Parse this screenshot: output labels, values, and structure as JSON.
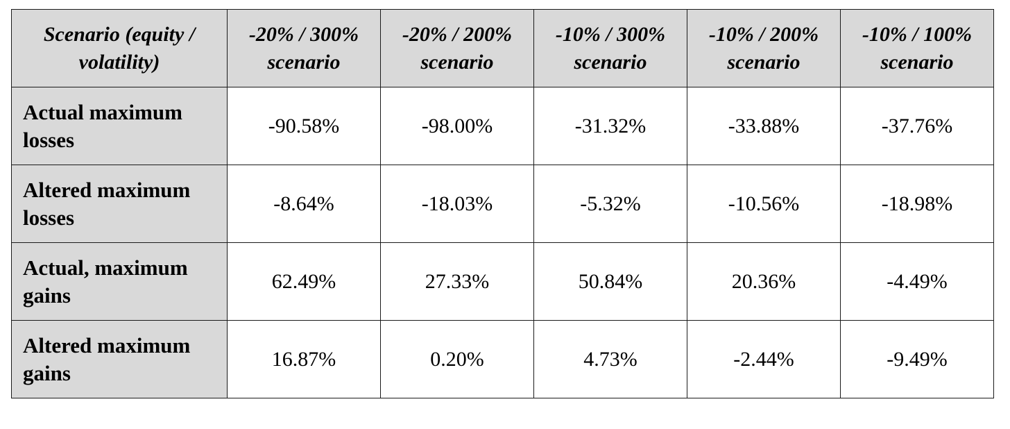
{
  "table": {
    "headers": [
      "Scenario (equity / volatility)",
      "-20% / 300% scenario",
      "-20% / 200% scenario",
      "-10% / 300% scenario",
      "-10% / 200% scenario",
      "-10% / 100% scenario"
    ],
    "rows": [
      {
        "label": "Actual maximum losses",
        "values": [
          "-90.58%",
          "-98.00%",
          "-31.32%",
          "-33.88%",
          "-37.76%"
        ]
      },
      {
        "label": "Altered maximum losses",
        "values": [
          "-8.64%",
          "-18.03%",
          "-5.32%",
          "-10.56%",
          "-18.98%"
        ]
      },
      {
        "label": "Actual, maximum gains",
        "values": [
          "62.49%",
          "27.33%",
          "50.84%",
          "20.36%",
          "-4.49%"
        ]
      },
      {
        "label": "Altered maximum gains",
        "values": [
          "16.87%",
          "0.20%",
          "4.73%",
          "-2.44%",
          "-9.49%"
        ]
      }
    ]
  },
  "colors": {
    "header_background": "#d9d9d9",
    "cell_background": "#ffffff",
    "border": "#1a1a1a"
  }
}
